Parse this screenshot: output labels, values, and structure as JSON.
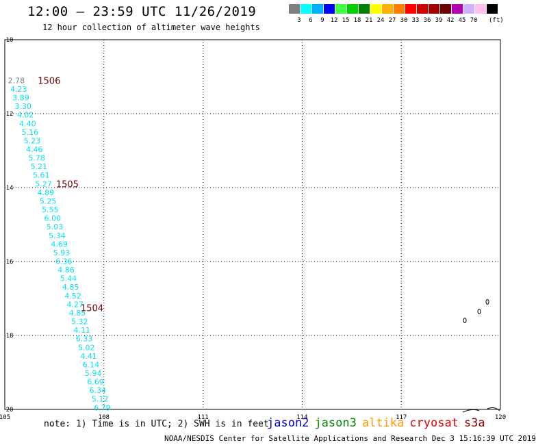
{
  "title": "12:00 – 23:59 UTC 11/26/2019",
  "subtitle": "12 hour collection of altimeter wave heights",
  "scale": {
    "colors": [
      "#808080",
      "#00ffff",
      "#00b0ff",
      "#0000ff",
      "#40ff40",
      "#00d000",
      "#008000",
      "#ffff00",
      "#ffb000",
      "#ff8000",
      "#ff0000",
      "#d00000",
      "#a00000",
      "#700000",
      "#b000b0",
      "#d0b0ff",
      "#ffc0f0",
      "#000000"
    ],
    "labels": [
      "3",
      "6",
      "9",
      "12",
      "15",
      "18",
      "21",
      "24",
      "27",
      "30",
      "33",
      "36",
      "39",
      "42",
      "45",
      "70"
    ],
    "unit": "(ft)"
  },
  "axes": {
    "lon_ticks": [
      "105",
      "108",
      "111",
      "114",
      "117",
      "120"
    ],
    "lat_ticks": [
      "10",
      "12",
      "14",
      "16",
      "18",
      "20"
    ],
    "lon_range": [
      105,
      120
    ],
    "lat_range": [
      10,
      20
    ],
    "grid": true
  },
  "track": {
    "lon_start": 105.35,
    "lon_end": 107.95,
    "lat_start": 11.1,
    "lat_end": 19.95,
    "values": [
      "2.78",
      "4.23",
      "3.89",
      "3.30",
      "4.02",
      "4.40",
      "5.16",
      "5.23",
      "4.46",
      "5.78",
      "5.21",
      "5.61",
      "5.27",
      "4.89",
      "5.25",
      "5.55",
      "6.00",
      "5.03",
      "5.34",
      "4.69",
      "5.93",
      "6.36",
      "4.86",
      "5.44",
      "4.85",
      "4.52",
      "4.27",
      "4.85",
      "5.32",
      "4.11",
      "6.33",
      "5.02",
      "4.41",
      "6.14",
      "5.94",
      "6.69",
      "6.34",
      "5.12",
      "6.79"
    ],
    "first_color": "#808080",
    "color": "#00e0f0"
  },
  "time_labels": [
    {
      "text": "1506",
      "lon": 106.0,
      "lat": 11.1
    },
    {
      "text": "1505",
      "lon": 106.55,
      "lat": 13.9
    },
    {
      "text": "1504",
      "lon": 107.3,
      "lat": 17.25
    }
  ],
  "time_label_color": "#700000",
  "footer_note": "note: 1) Time is in UTC; 2) SWH is in feet",
  "satellites": [
    {
      "name": "jason2",
      "color": "#0000d0"
    },
    {
      "name": "jason3",
      "color": "#008800"
    },
    {
      "name": "altika",
      "color": "#ff9900"
    },
    {
      "name": "cryosat",
      "color": "#dd0000"
    },
    {
      "name": "s3a",
      "color": "#990000"
    }
  ],
  "credit": "NOAA/NESDIS Center for Satellite Applications and Research    Dec  3 15:16:39 UTC 2019"
}
